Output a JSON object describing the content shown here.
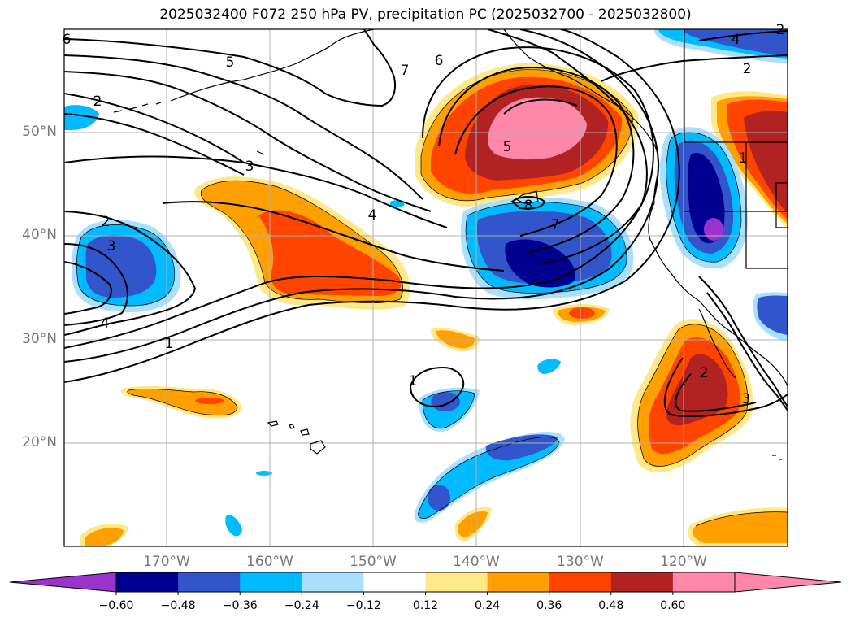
{
  "title": "2025032400 F072 250 hPa PV, precipitation PC (2025032700 - 2025032800)",
  "lat_labels": [
    "50°N",
    "40°N",
    "30°N",
    "20°N"
  ],
  "lon_labels": [
    "170°W",
    "160°W",
    "150°W",
    "140°W",
    "130°W",
    "120°W"
  ],
  "colorbar": {
    "ticks": [
      "−0.60",
      "−0.48",
      "−0.36",
      "−0.24",
      "−0.12",
      "0.12",
      "0.24",
      "0.36",
      "0.48",
      "0.60"
    ],
    "colors": [
      "#9933cc",
      "#000090",
      "#3355cc",
      "#00bbff",
      "#aae0ff",
      "#ffffff",
      "#ffe888",
      "#ffa000",
      "#ff4400",
      "#b22222",
      "#ff88aa",
      "#ff88aa"
    ]
  },
  "contour_labels": [
    "6",
    "5",
    "7",
    "6",
    "4",
    "2",
    "2",
    "2",
    "3",
    "4",
    "5",
    "8",
    "7",
    "2",
    "3",
    "4",
    "1",
    "1",
    "1",
    "2",
    "3"
  ]
}
